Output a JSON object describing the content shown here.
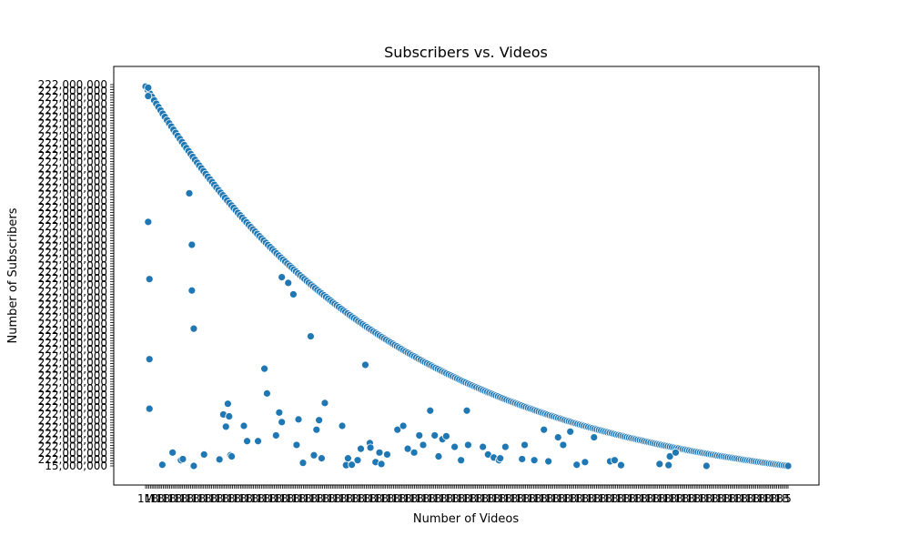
{
  "chart_data": {
    "type": "scatter",
    "title": "Subscribers vs. Videos",
    "xlabel": "Number of Videos",
    "ylabel": "Number of Subscribers",
    "grid": false,
    "legend": "none",
    "marker_color": "#1f77b4",
    "marker_edge_color": "#ffffff",
    "background_color": "#ffffff",
    "x_tick_labels_visible": [
      "1M",
      "1B",
      "5"
    ],
    "y_tick_labels_visible": [
      "222,000,000",
      "15,000,000"
    ],
    "xlim": [
      0,
      100
    ],
    "ylim": [
      0,
      100
    ],
    "curve_count": 300,
    "curve_start": 99.5,
    "curve_end": 0,
    "curve_decay": 2.55,
    "x_tick_count": 400,
    "y_tick_count": 150,
    "series": [
      {
        "x": [
          0.4,
          0.4,
          0.4,
          0.6,
          0.6,
          0.6,
          2.6,
          4.2,
          5.5,
          5.8,
          6.8,
          7.2,
          7.2,
          7.5,
          7.5,
          9.1,
          11.5,
          12.1,
          12.5,
          12.8,
          13.0,
          13.2,
          13.4,
          15.3,
          15.8,
          17.5,
          18.5,
          18.9,
          20.3,
          20.8,
          21.2,
          21.2,
          22.2,
          23.0,
          23.5,
          23.8,
          24.5,
          25.7,
          26.2,
          26.6,
          27.0,
          27.4,
          27.9,
          30.6,
          31.2,
          31.5,
          32.1,
          33.0,
          33.5,
          34.2,
          34.9,
          35.0,
          35.8,
          36.4,
          36.7,
          37.6,
          39.2,
          40.1,
          40.8,
          41.8,
          42.6,
          43.2,
          44.3,
          45.0,
          45.6,
          46.2,
          46.8,
          48.1,
          49.1,
          50.0,
          50.2,
          52.5,
          53.3,
          54.2,
          55.0,
          55.2,
          56.0,
          58.6,
          59.0,
          60.5,
          62.0,
          62.7,
          64.2,
          65.0,
          66.1,
          67.1,
          68.4,
          69.8,
          72.3,
          73.0,
          74.0,
          80.0,
          81.4,
          81.6,
          82.5,
          87.3
        ],
        "y": [
          99.2,
          97.0,
          64.0,
          49.0,
          28.0,
          15.0,
          0.3,
          3.5,
          1.5,
          1.8,
          71.5,
          58.0,
          46.0,
          36.0,
          0.0,
          3.0,
          1.7,
          13.5,
          10.3,
          16.3,
          13.0,
          2.8,
          2.5,
          10.5,
          6.5,
          6.5,
          25.5,
          19.0,
          8.0,
          14.0,
          11.5,
          49.5,
          48.0,
          45.0,
          5.5,
          12.2,
          0.8,
          34.0,
          2.8,
          9.5,
          12.0,
          2.0,
          16.5,
          10.5,
          0.2,
          2.0,
          0.3,
          1.5,
          4.5,
          26.5,
          6.0,
          4.8,
          1.0,
          3.5,
          0.5,
          3.0,
          9.5,
          10.5,
          4.5,
          3.5,
          8.0,
          5.5,
          14.5,
          8.0,
          2.5,
          7.0,
          7.8,
          5.0,
          1.5,
          14.5,
          5.5,
          5.0,
          3.0,
          2.2,
          1.5,
          2.0,
          5.0,
          1.8,
          5.5,
          1.5,
          9.5,
          1.2,
          7.5,
          5.5,
          9.0,
          0.3,
          1.0,
          7.5,
          1.2,
          1.5,
          0.2,
          0.5,
          0.2,
          2.5,
          3.5,
          0.0
        ]
      }
    ]
  }
}
